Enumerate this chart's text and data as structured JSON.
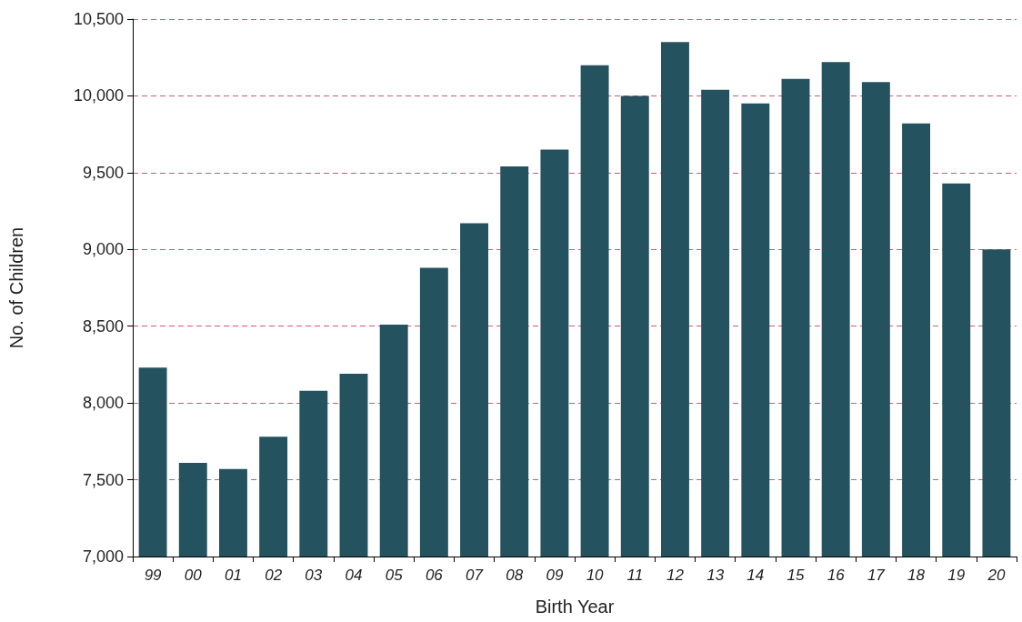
{
  "chart_data": {
    "type": "bar",
    "xlabel": "Birth Year",
    "ylabel": "No. of Children",
    "categories": [
      "99",
      "00",
      "01",
      "02",
      "03",
      "04",
      "05",
      "06",
      "07",
      "08",
      "09",
      "10",
      "11",
      "12",
      "13",
      "14",
      "15",
      "16",
      "17",
      "18",
      "19",
      "20"
    ],
    "values": [
      8230,
      7610,
      7570,
      7780,
      8080,
      8190,
      8510,
      8880,
      9170,
      9540,
      9650,
      10200,
      10000,
      10350,
      10040,
      9950,
      10110,
      10220,
      10090,
      9820,
      9430,
      9000
    ],
    "color": "#24535f",
    "ylim": [
      7000,
      10500
    ],
    "yticks": [
      {
        "value": 7000,
        "label": "7,000"
      },
      {
        "value": 7500,
        "label": "7,500"
      },
      {
        "value": 8000,
        "label": "8,000"
      },
      {
        "value": 8500,
        "label": "8,500"
      },
      {
        "value": 9000,
        "label": "9,000"
      },
      {
        "value": 9500,
        "label": "9,500"
      },
      {
        "value": 10000,
        "label": "10,000"
      },
      {
        "value": 10500,
        "label": "10,500"
      }
    ],
    "grid": "y"
  }
}
